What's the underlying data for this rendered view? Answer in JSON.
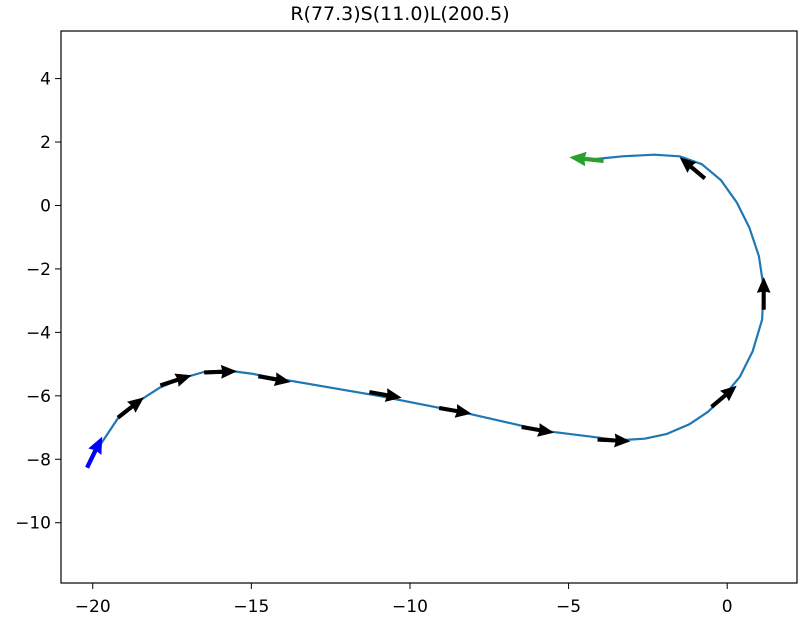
{
  "chart_data": {
    "type": "line",
    "title": "R(77.3)S(11.0)L(200.5)",
    "xlabel": "",
    "ylabel": "",
    "xlim": [
      -21.0,
      2.2
    ],
    "ylim": [
      -11.9,
      5.5
    ],
    "grid": false,
    "xticks": [
      -20,
      -15,
      -10,
      -5,
      0
    ],
    "xtick_labels": [
      "−20",
      "−15",
      "−10",
      "−5",
      "0"
    ],
    "yticks": [
      4,
      2,
      0,
      -2,
      -4,
      -6,
      -8,
      -10
    ],
    "ytick_labels": [
      "4",
      "2",
      "0",
      "−2",
      "−4",
      "−6",
      "−8",
      "−10"
    ],
    "path": {
      "color": "#1f77b4",
      "x": [
        -20.0,
        -19.6,
        -19.2,
        -18.6,
        -17.9,
        -17.2,
        -16.5,
        -15.8,
        -15.0,
        -14.2,
        -11.0,
        -8.2,
        -5.8,
        -3.4,
        -2.6,
        -1.9,
        -1.2,
        -0.6,
        -0.1,
        0.4,
        0.8,
        1.1,
        1.15,
        1.0,
        0.7,
        0.3,
        -0.2,
        -0.8,
        -1.5,
        -2.3,
        -3.3,
        -4.3
      ],
      "y": [
        -7.9,
        -7.3,
        -6.7,
        -6.2,
        -5.75,
        -5.45,
        -5.25,
        -5.2,
        -5.3,
        -5.45,
        -6.0,
        -6.55,
        -7.1,
        -7.4,
        -7.35,
        -7.2,
        -6.9,
        -6.5,
        -6.0,
        -5.4,
        -4.6,
        -3.6,
        -2.6,
        -1.6,
        -0.7,
        0.1,
        0.8,
        1.3,
        1.55,
        1.6,
        1.55,
        1.45
      ]
    },
    "start_arrow": {
      "x": -20.0,
      "y": -7.9,
      "angle_deg": 64,
      "color": "#0000ff"
    },
    "end_arrow": {
      "x": -4.3,
      "y": 1.45,
      "angle_deg": 174,
      "color": "#2ca02c"
    },
    "heading_arrows": {
      "color": "#000000",
      "items": [
        {
          "x": -18.9,
          "y": -6.45,
          "angle_deg": 38
        },
        {
          "x": -17.5,
          "y": -5.55,
          "angle_deg": 18
        },
        {
          "x": -16.1,
          "y": -5.25,
          "angle_deg": 2
        },
        {
          "x": -14.4,
          "y": -5.45,
          "angle_deg": -10
        },
        {
          "x": -10.9,
          "y": -5.95,
          "angle_deg": -10
        },
        {
          "x": -8.7,
          "y": -6.45,
          "angle_deg": -10
        },
        {
          "x": -6.1,
          "y": -7.05,
          "angle_deg": -10
        },
        {
          "x": -3.7,
          "y": -7.4,
          "angle_deg": -3
        },
        {
          "x": -0.2,
          "y": -6.1,
          "angle_deg": 40
        },
        {
          "x": 1.15,
          "y": -2.9,
          "angle_deg": 90
        },
        {
          "x": -1.0,
          "y": 1.1,
          "angle_deg": 140
        }
      ]
    }
  }
}
